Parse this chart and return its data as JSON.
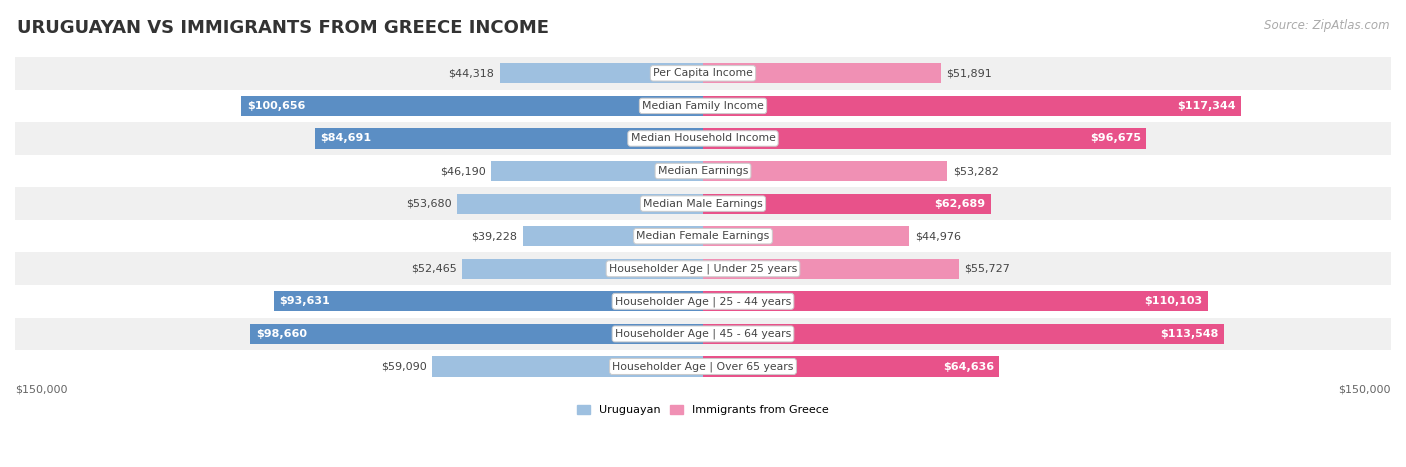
{
  "title": "URUGUAYAN VS IMMIGRANTS FROM GREECE INCOME",
  "source": "Source: ZipAtlas.com",
  "categories": [
    "Per Capita Income",
    "Median Family Income",
    "Median Household Income",
    "Median Earnings",
    "Median Male Earnings",
    "Median Female Earnings",
    "Householder Age | Under 25 years",
    "Householder Age | 25 - 44 years",
    "Householder Age | 45 - 64 years",
    "Householder Age | Over 65 years"
  ],
  "uruguayan_values": [
    44318,
    100656,
    84691,
    46190,
    53680,
    39228,
    52465,
    93631,
    98660,
    59090
  ],
  "greece_values": [
    51891,
    117344,
    96675,
    53282,
    62689,
    44976,
    55727,
    110103,
    113548,
    64636
  ],
  "uruguayan_labels": [
    "$44,318",
    "$100,656",
    "$84,691",
    "$46,190",
    "$53,680",
    "$39,228",
    "$52,465",
    "$93,631",
    "$98,660",
    "$59,090"
  ],
  "greece_labels": [
    "$51,891",
    "$117,344",
    "$96,675",
    "$53,282",
    "$62,689",
    "$44,976",
    "$55,727",
    "$110,103",
    "$113,548",
    "$64,636"
  ],
  "max_value": 150000,
  "color_uruguayan": "#9ec0e0",
  "color_greece": "#f090b4",
  "color_uruguayan_strong": "#5b8ec4",
  "color_greece_strong": "#e8528a",
  "bar_height": 0.62,
  "row_bg_even": "#f0f0f0",
  "row_bg_odd": "#ffffff",
  "title_fontsize": 13,
  "source_fontsize": 8.5,
  "label_fontsize": 8.0,
  "cat_fontsize": 7.8,
  "axis_label": "$150,000",
  "legend_uruguayan": "Uruguayan",
  "legend_greece": "Immigrants from Greece",
  "inside_threshold": 60000
}
